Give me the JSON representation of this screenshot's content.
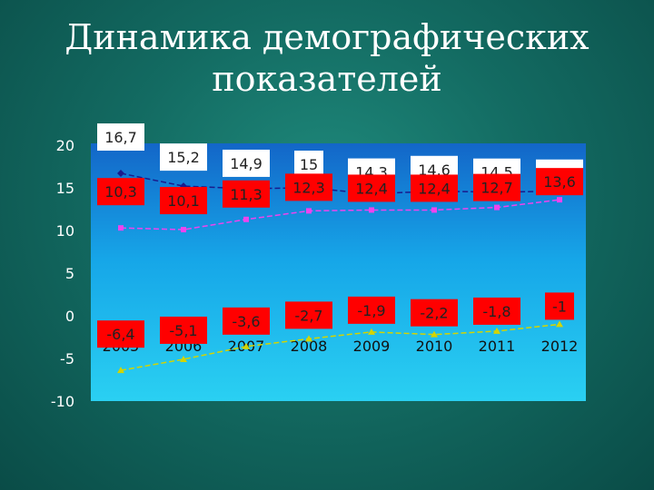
{
  "title_lines": [
    "Динамика демографических",
    "показателей"
  ],
  "chart_data": {
    "type": "line",
    "title": "Динамика демографических показателей",
    "categories": [
      "2005",
      "2006",
      "2007",
      "2008",
      "2009",
      "2010",
      "2011",
      "2012"
    ],
    "y_ticks": [
      "20",
      "15",
      "10",
      "5",
      "0",
      "-5",
      "-10"
    ],
    "ylim": [
      -10,
      20
    ],
    "grid": false,
    "series": [
      {
        "values": [
          16.7,
          15.2,
          14.9,
          15,
          14.3,
          14.6,
          14.5,
          14.6
        ],
        "labels": [
          "16,7",
          "15,2",
          "14,9",
          "15",
          "14,3",
          "14,6",
          "14,5",
          "14,6"
        ],
        "color": "#1a1a8c",
        "marker": "diamond",
        "label_style": "white"
      },
      {
        "values": [
          10.3,
          10.1,
          11.3,
          12.3,
          12.4,
          12.4,
          12.7,
          13.6
        ],
        "labels": [
          "10,3",
          "10,1",
          "11,3",
          "12,3",
          "12,4",
          "12,4",
          "12,7",
          "13,6"
        ],
        "color": "#ee44ee",
        "marker": "square",
        "label_style": "red"
      },
      {
        "values": [
          -6.4,
          -5.1,
          -3.6,
          -2.7,
          -1.9,
          -2.2,
          -1.8,
          -1
        ],
        "labels": [
          "-6,4",
          "-5,1",
          "-3,6",
          "-2,7",
          "-1,9",
          "-2,2",
          "-1,8",
          "-1"
        ],
        "color": "#d4d400",
        "marker": "triangle",
        "label_style": "red"
      }
    ]
  }
}
